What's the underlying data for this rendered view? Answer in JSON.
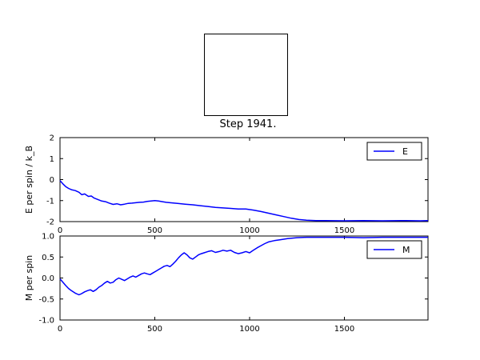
{
  "step_label": "Step 1941.",
  "colors": {
    "line": "#0000ff",
    "axis": "#000000",
    "background": "#ffffff",
    "legend_border": "#000000"
  },
  "chart_data": [
    {
      "type": "line",
      "title": "",
      "xlabel": "",
      "ylabel": "E per spin / k_B",
      "xlim": [
        0,
        1941
      ],
      "ylim": [
        -2,
        2
      ],
      "xticks": [
        0,
        500,
        1000,
        1500
      ],
      "xtick_labels": [
        "0",
        "500",
        "1000",
        "1500"
      ],
      "yticks": [
        -2,
        -1,
        0,
        1,
        2
      ],
      "ytick_labels": [
        "-2",
        "-1",
        "0",
        "1",
        "2"
      ],
      "grid": false,
      "legend": {
        "label": "E",
        "position": "upper right"
      },
      "series": [
        {
          "name": "E",
          "color": "#0000ff",
          "x": [
            0,
            15,
            30,
            45,
            60,
            80,
            100,
            115,
            130,
            150,
            165,
            180,
            200,
            220,
            240,
            260,
            280,
            300,
            320,
            340,
            360,
            380,
            400,
            420,
            440,
            460,
            480,
            500,
            520,
            540,
            560,
            580,
            620,
            660,
            700,
            740,
            780,
            820,
            860,
            900,
            940,
            980,
            1020,
            1060,
            1100,
            1140,
            1180,
            1220,
            1260,
            1300,
            1350,
            1400,
            1500,
            1600,
            1700,
            1800,
            1900,
            1941
          ],
          "y": [
            -0.05,
            -0.2,
            -0.33,
            -0.42,
            -0.48,
            -0.52,
            -0.6,
            -0.72,
            -0.68,
            -0.8,
            -0.78,
            -0.88,
            -0.95,
            -1.02,
            -1.05,
            -1.12,
            -1.18,
            -1.15,
            -1.2,
            -1.17,
            -1.13,
            -1.12,
            -1.1,
            -1.08,
            -1.07,
            -1.04,
            -1.02,
            -1.0,
            -1.02,
            -1.05,
            -1.08,
            -1.1,
            -1.13,
            -1.17,
            -1.2,
            -1.24,
            -1.28,
            -1.32,
            -1.35,
            -1.37,
            -1.4,
            -1.4,
            -1.45,
            -1.52,
            -1.6,
            -1.68,
            -1.76,
            -1.84,
            -1.9,
            -1.93,
            -1.95,
            -1.95,
            -1.96,
            -1.95,
            -1.96,
            -1.95,
            -1.96,
            -1.95
          ]
        }
      ]
    },
    {
      "type": "line",
      "title": "",
      "xlabel": "",
      "ylabel": "M per spin",
      "xlim": [
        0,
        1941
      ],
      "ylim": [
        -1,
        1
      ],
      "xticks": [
        0,
        500,
        1000,
        1500
      ],
      "xtick_labels": [
        "0",
        "500",
        "1000",
        "1500"
      ],
      "yticks": [
        -1.0,
        -0.5,
        0.0,
        0.5,
        1.0
      ],
      "ytick_labels": [
        "-1.0",
        "-0.5",
        "0.0",
        "0.5",
        "1.0"
      ],
      "grid": false,
      "legend": {
        "label": "M",
        "position": "upper right"
      },
      "series": [
        {
          "name": "M",
          "color": "#0000ff",
          "x": [
            0,
            15,
            30,
            45,
            60,
            80,
            100,
            115,
            130,
            145,
            160,
            175,
            190,
            205,
            220,
            235,
            250,
            265,
            280,
            295,
            310,
            325,
            340,
            355,
            370,
            385,
            400,
            415,
            430,
            445,
            460,
            475,
            490,
            505,
            520,
            535,
            550,
            565,
            580,
            595,
            610,
            625,
            640,
            655,
            670,
            685,
            700,
            715,
            730,
            745,
            760,
            780,
            800,
            820,
            840,
            860,
            880,
            900,
            920,
            940,
            960,
            980,
            1000,
            1020,
            1040,
            1060,
            1080,
            1100,
            1130,
            1160,
            1200,
            1250,
            1300,
            1400,
            1500,
            1600,
            1700,
            1800,
            1900,
            1941
          ],
          "y": [
            -0.02,
            -0.1,
            -0.18,
            -0.25,
            -0.3,
            -0.36,
            -0.4,
            -0.37,
            -0.33,
            -0.3,
            -0.28,
            -0.32,
            -0.28,
            -0.22,
            -0.18,
            -0.12,
            -0.08,
            -0.12,
            -0.1,
            -0.04,
            0.0,
            -0.03,
            -0.06,
            -0.02,
            0.02,
            0.05,
            0.02,
            0.06,
            0.1,
            0.12,
            0.1,
            0.08,
            0.12,
            0.16,
            0.2,
            0.24,
            0.28,
            0.3,
            0.27,
            0.33,
            0.4,
            0.48,
            0.55,
            0.6,
            0.55,
            0.48,
            0.45,
            0.5,
            0.55,
            0.58,
            0.6,
            0.63,
            0.65,
            0.61,
            0.63,
            0.66,
            0.64,
            0.66,
            0.61,
            0.58,
            0.6,
            0.63,
            0.6,
            0.66,
            0.72,
            0.77,
            0.82,
            0.86,
            0.89,
            0.91,
            0.94,
            0.96,
            0.97,
            0.97,
            0.97,
            0.96,
            0.97,
            0.97,
            0.97,
            0.97
          ]
        }
      ]
    }
  ]
}
